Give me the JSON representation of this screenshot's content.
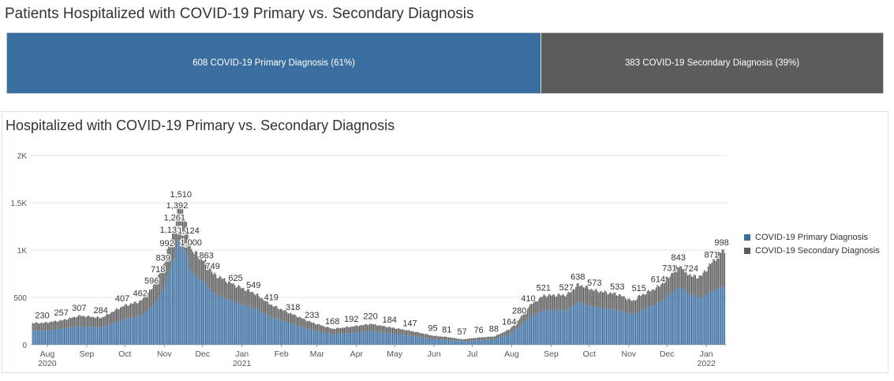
{
  "summary": {
    "title": "Patients Hospitalized with COVID-19 Primary vs. Secondary Diagnosis",
    "primary_label": "608 COVID-19 Primary Diagnosis (61%)",
    "secondary_label": "383 COVID-19 Secondary Diagnosis (39%)",
    "primary_share": 0.61,
    "secondary_share": 0.39
  },
  "colors": {
    "primary": "#3a6ea1",
    "secondary": "#5c5c5c",
    "grid": "#e2e2e2"
  },
  "chart_data": {
    "type": "bar",
    "stacked": true,
    "title": "Hospitalized with COVID-19 Primary vs. Secondary Diagnosis",
    "yticks": [
      "0",
      "500",
      "1K",
      "1.5K",
      "2K"
    ],
    "ylim": [
      0,
      2000
    ],
    "grid": true,
    "legend_position": "right",
    "xticks": [
      {
        "date": "2020-08-01",
        "label": "Aug",
        "year": "2020"
      },
      {
        "date": "2020-09-01",
        "label": "Sep",
        "year": ""
      },
      {
        "date": "2020-10-01",
        "label": "Oct",
        "year": ""
      },
      {
        "date": "2020-11-01",
        "label": "Nov",
        "year": ""
      },
      {
        "date": "2020-12-01",
        "label": "Dec",
        "year": ""
      },
      {
        "date": "2021-01-01",
        "label": "Jan",
        "year": "2021"
      },
      {
        "date": "2021-02-01",
        "label": "Feb",
        "year": ""
      },
      {
        "date": "2021-03-01",
        "label": "Mar",
        "year": ""
      },
      {
        "date": "2021-04-01",
        "label": "Apr",
        "year": ""
      },
      {
        "date": "2021-05-01",
        "label": "May",
        "year": ""
      },
      {
        "date": "2021-06-01",
        "label": "Jun",
        "year": ""
      },
      {
        "date": "2021-07-01",
        "label": "Jul",
        "year": ""
      },
      {
        "date": "2021-08-01",
        "label": "Aug",
        "year": ""
      },
      {
        "date": "2021-09-01",
        "label": "Sep",
        "year": ""
      },
      {
        "date": "2021-10-01",
        "label": "Oct",
        "year": ""
      },
      {
        "date": "2021-11-01",
        "label": "Nov",
        "year": ""
      },
      {
        "date": "2021-12-01",
        "label": "Dec",
        "year": ""
      },
      {
        "date": "2022-01-01",
        "label": "Jan",
        "year": "2022"
      }
    ],
    "series": [
      {
        "name": "COVID-19 Primary Diagnosis",
        "color": "#3a6ea1"
      },
      {
        "name": "COVID-19 Secondary Diagnosis",
        "color": "#5c5c5c"
      }
    ],
    "data": [
      {
        "date": "2020-07-28",
        "total": 230,
        "primary": 150
      },
      {
        "date": "2020-08-12",
        "total": 257,
        "primary": 168
      },
      {
        "date": "2020-08-26",
        "total": 307,
        "primary": 195
      },
      {
        "date": "2020-09-12",
        "total": 284,
        "primary": 182
      },
      {
        "date": "2020-09-29",
        "total": 407,
        "primary": 265
      },
      {
        "date": "2020-10-13",
        "total": 462,
        "primary": 305
      },
      {
        "date": "2020-10-22",
        "total": 596,
        "primary": 405
      },
      {
        "date": "2020-10-27",
        "total": 718,
        "primary": 500
      },
      {
        "date": "2020-10-31",
        "total": 839,
        "primary": 590
      },
      {
        "date": "2020-11-03",
        "total": 992,
        "primary": 710
      },
      {
        "date": "2020-11-06",
        "total": 1135,
        "primary": 840
      },
      {
        "date": "2020-11-09",
        "total": 1261,
        "primary": 950
      },
      {
        "date": "2020-11-11",
        "total": 1392,
        "primary": 1060
      },
      {
        "date": "2020-11-14",
        "total": 1510,
        "primary": 1150
      },
      {
        "date": "2020-11-20",
        "total": 1124,
        "primary": 850
      },
      {
        "date": "2020-11-22",
        "total": 1000,
        "primary": 760
      },
      {
        "date": "2020-12-04",
        "total": 863,
        "primary": 640
      },
      {
        "date": "2020-12-09",
        "total": 749,
        "primary": 545
      },
      {
        "date": "2020-12-27",
        "total": 625,
        "primary": 445
      },
      {
        "date": "2021-01-10",
        "total": 549,
        "primary": 385
      },
      {
        "date": "2021-01-24",
        "total": 419,
        "primary": 290
      },
      {
        "date": "2021-02-10",
        "total": 318,
        "primary": 215
      },
      {
        "date": "2021-02-25",
        "total": 233,
        "primary": 155
      },
      {
        "date": "2021-03-13",
        "total": 168,
        "primary": 110
      },
      {
        "date": "2021-03-28",
        "total": 192,
        "primary": 125
      },
      {
        "date": "2021-04-12",
        "total": 220,
        "primary": 145
      },
      {
        "date": "2021-04-27",
        "total": 184,
        "primary": 120
      },
      {
        "date": "2021-05-13",
        "total": 147,
        "primary": 95
      },
      {
        "date": "2021-05-31",
        "total": 95,
        "primary": 60
      },
      {
        "date": "2021-06-11",
        "total": 81,
        "primary": 52
      },
      {
        "date": "2021-06-23",
        "total": 57,
        "primary": 36
      },
      {
        "date": "2021-07-06",
        "total": 76,
        "primary": 48
      },
      {
        "date": "2021-07-18",
        "total": 88,
        "primary": 56
      },
      {
        "date": "2021-07-30",
        "total": 164,
        "primary": 110
      },
      {
        "date": "2021-08-07",
        "total": 280,
        "primary": 195
      },
      {
        "date": "2021-08-14",
        "total": 410,
        "primary": 290
      },
      {
        "date": "2021-08-26",
        "total": 521,
        "primary": 365
      },
      {
        "date": "2021-09-13",
        "total": 527,
        "primary": 370
      },
      {
        "date": "2021-09-22",
        "total": 638,
        "primary": 450
      },
      {
        "date": "2021-10-05",
        "total": 573,
        "primary": 400
      },
      {
        "date": "2021-10-23",
        "total": 533,
        "primary": 365
      },
      {
        "date": "2021-11-04",
        "total": 460,
        "primary": 320
      },
      {
        "date": "2021-11-09",
        "total": 515,
        "primary": 355
      },
      {
        "date": "2021-11-24",
        "total": 614,
        "primary": 440
      },
      {
        "date": "2021-12-03",
        "total": 731,
        "primary": 530
      },
      {
        "date": "2021-12-10",
        "total": 843,
        "primary": 620
      },
      {
        "date": "2021-12-20",
        "total": 724,
        "primary": 520
      },
      {
        "date": "2021-12-27",
        "total": 720,
        "primary": 495
      },
      {
        "date": "2022-01-05",
        "total": 871,
        "primary": 570
      },
      {
        "date": "2022-01-13",
        "total": 998,
        "primary": 610
      }
    ],
    "labeled_points": [
      {
        "date": "2020-07-28",
        "value": "230"
      },
      {
        "date": "2020-08-12",
        "value": "257"
      },
      {
        "date": "2020-08-26",
        "value": "307"
      },
      {
        "date": "2020-09-12",
        "value": "284"
      },
      {
        "date": "2020-09-29",
        "value": "407"
      },
      {
        "date": "2020-10-13",
        "value": "462"
      },
      {
        "date": "2020-10-22",
        "value": "596"
      },
      {
        "date": "2020-10-27",
        "value": "718"
      },
      {
        "date": "2020-10-31",
        "value": "839"
      },
      {
        "date": "2020-11-03",
        "value": "992"
      },
      {
        "date": "2020-11-06",
        "value": "1,135"
      },
      {
        "date": "2020-11-09",
        "value": "1,261"
      },
      {
        "date": "2020-11-11",
        "value": "1,392"
      },
      {
        "date": "2020-11-14",
        "value": "1,510"
      },
      {
        "date": "2020-11-20",
        "value": "1,124"
      },
      {
        "date": "2020-11-22",
        "value": "1,000"
      },
      {
        "date": "2020-12-04",
        "value": "863"
      },
      {
        "date": "2020-12-09",
        "value": "749"
      },
      {
        "date": "2020-12-27",
        "value": "625"
      },
      {
        "date": "2021-01-10",
        "value": "549"
      },
      {
        "date": "2021-01-24",
        "value": "419"
      },
      {
        "date": "2021-02-10",
        "value": "318"
      },
      {
        "date": "2021-02-25",
        "value": "233"
      },
      {
        "date": "2021-03-13",
        "value": "168"
      },
      {
        "date": "2021-03-28",
        "value": "192"
      },
      {
        "date": "2021-04-12",
        "value": "220"
      },
      {
        "date": "2021-04-27",
        "value": "184"
      },
      {
        "date": "2021-05-13",
        "value": "147"
      },
      {
        "date": "2021-05-31",
        "value": "95"
      },
      {
        "date": "2021-06-11",
        "value": "81"
      },
      {
        "date": "2021-06-23",
        "value": "57"
      },
      {
        "date": "2021-07-06",
        "value": "76"
      },
      {
        "date": "2021-07-18",
        "value": "88"
      },
      {
        "date": "2021-07-30",
        "value": "164"
      },
      {
        "date": "2021-08-07",
        "value": "280"
      },
      {
        "date": "2021-08-14",
        "value": "410"
      },
      {
        "date": "2021-08-26",
        "value": "521"
      },
      {
        "date": "2021-09-13",
        "value": "527"
      },
      {
        "date": "2021-09-22",
        "value": "638"
      },
      {
        "date": "2021-10-05",
        "value": "573"
      },
      {
        "date": "2021-10-23",
        "value": "533"
      },
      {
        "date": "2021-11-09",
        "value": "515"
      },
      {
        "date": "2021-11-24",
        "value": "614"
      },
      {
        "date": "2021-12-03",
        "value": "731"
      },
      {
        "date": "2021-12-10",
        "value": "843"
      },
      {
        "date": "2021-12-20",
        "value": "724"
      },
      {
        "date": "2022-01-05",
        "value": "871"
      },
      {
        "date": "2022-01-13",
        "value": "998"
      }
    ]
  }
}
